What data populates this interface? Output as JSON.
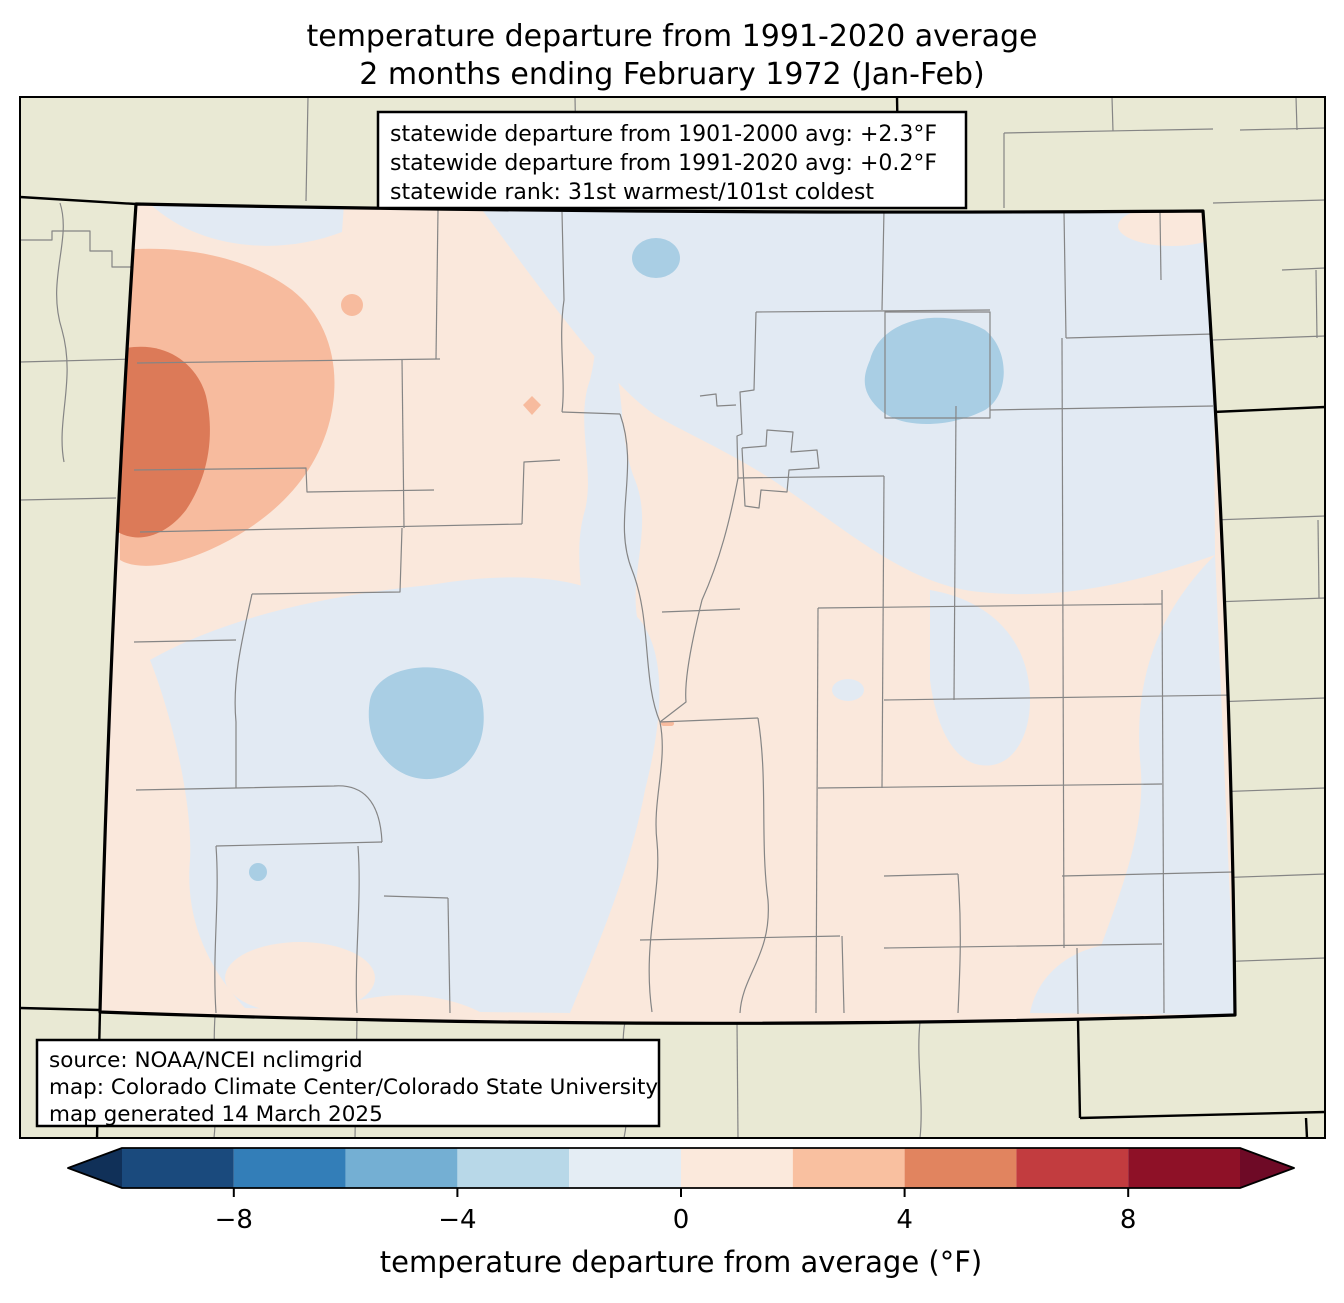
{
  "title": {
    "line1": "temperature departure from 1991-2020 average",
    "line2": "2 months ending February 1972 (Jan-Feb)"
  },
  "stats_box": {
    "line1": "statewide departure from 1901-2000 avg: +2.3°F",
    "line2": "statewide departure from 1991-2020 avg: +0.2°F",
    "line3": "statewide rank: 31st warmest/101st coldest"
  },
  "source_box": {
    "line1": "source: NOAA/NCEI nclimgrid",
    "line2": "map: Colorado Climate Center/Colorado State University",
    "line3": "map generated 14 March 2025"
  },
  "map": {
    "region": "Colorado with surrounding states",
    "outside_fill": "#e9e9d4",
    "anomaly_fills": {
      "neg4_to_neg2": "#a9cee4",
      "neg2_to_0": "#e2eaf3",
      "0_to_2": "#fae8dc",
      "2_to_4": "#f7bb9e",
      "4_to_6": "#dc7a58"
    },
    "features": [
      {
        "name": "northwest-warm-anomaly",
        "value_bin": "+2 to +6 °F"
      },
      {
        "name": "north-park-cool-blob",
        "value_bin": "-4 to -2 °F"
      },
      {
        "name": "west-central-cool-blob",
        "value_bin": "-4 to -2 °F"
      },
      {
        "name": "statewide-background",
        "value_bin": "-2 to +2 °F"
      }
    ]
  },
  "colorbar": {
    "label": "temperature departure from average (°F)",
    "range": [
      -10,
      10
    ],
    "bins": [
      {
        "from": -10,
        "to": -8,
        "color": "#1a4a7d"
      },
      {
        "from": -8,
        "to": -6,
        "color": "#337eb8"
      },
      {
        "from": -6,
        "to": -4,
        "color": "#74afd3"
      },
      {
        "from": -4,
        "to": -2,
        "color": "#b8d8e8"
      },
      {
        "from": -2,
        "to": 0,
        "color": "#e4edf4"
      },
      {
        "from": 0,
        "to": 2,
        "color": "#fbe9dc"
      },
      {
        "from": 2,
        "to": 4,
        "color": "#f9c0a0"
      },
      {
        "from": 4,
        "to": 6,
        "color": "#e1845f"
      },
      {
        "from": 6,
        "to": 8,
        "color": "#c23c3f"
      },
      {
        "from": 8,
        "to": 10,
        "color": "#8e1127"
      }
    ],
    "under_color": "#103058",
    "over_color": "#6e0a26",
    "ticks": [
      {
        "value": -8,
        "label": "−8"
      },
      {
        "value": -4,
        "label": "−4"
      },
      {
        "value": 0,
        "label": "0"
      },
      {
        "value": 4,
        "label": "4"
      },
      {
        "value": 8,
        "label": "8"
      }
    ]
  }
}
